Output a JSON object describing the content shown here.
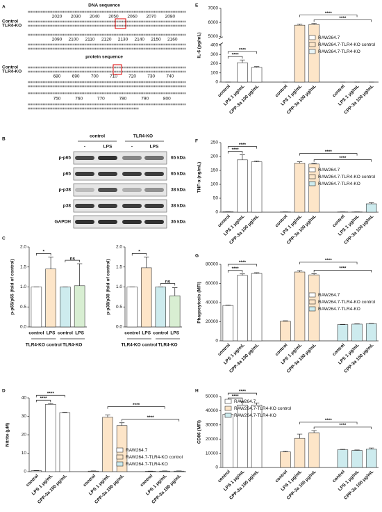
{
  "panel_a": {
    "label": "A",
    "dna_title": "DNA sequence",
    "protein_title": "protein sequence",
    "row_labels": [
      "Control",
      "TLR4-KO"
    ],
    "dna_positions": [
      [
        2020,
        2030,
        2040,
        2050,
        2060,
        2070,
        2080
      ],
      [
        2090,
        2100,
        2110,
        2120,
        2130,
        2140,
        2150,
        2160
      ]
    ],
    "protein_positions": [
      [
        680,
        690,
        700,
        710,
        720,
        730,
        740
      ],
      [
        750,
        760,
        770,
        780,
        790,
        800
      ]
    ]
  },
  "panel_b": {
    "label": "B",
    "groups": [
      "control",
      "TLR4-KO"
    ],
    "treatments": [
      "-",
      "LPS",
      "-",
      "LPS"
    ],
    "proteins": [
      "p-p65",
      "p65",
      "p-p38",
      "p38",
      "GAPDH"
    ],
    "sizes": [
      "65 kDa",
      "65 kDa",
      "38 kDa",
      "38 kDa",
      "36 kDa"
    ]
  },
  "chart_data": [
    {
      "type": "bar",
      "label": "C",
      "ylabel": "p-p65/p65 (fold of control)",
      "categories": [
        "control",
        "LPS",
        "control",
        "LPS"
      ],
      "group_labels": [
        "TLR4-KO control",
        "TLR4-KO"
      ],
      "values": [
        1,
        1.45,
        1,
        1.03
      ],
      "errors": [
        0,
        0.3,
        0,
        0.55
      ],
      "colors": [
        "#ffffff",
        "#fde5c8",
        "#cdebee",
        "#d8eed2"
      ],
      "ylim": [
        0,
        2
      ],
      "yticks": [
        {
          "value": 0,
          "label": "0.0"
        },
        {
          "value": 0.5,
          "label": "0.5"
        },
        {
          "value": 1,
          "label": "1.0"
        },
        {
          "value": 1.5,
          "label": "1.5"
        },
        {
          "value": 2,
          "label": "2.0"
        }
      ],
      "annotations": [
        "*",
        "ns"
      ]
    },
    {
      "type": "bar",
      "ylabel": "p-p38/p38 (fold of control)",
      "categories": [
        "control",
        "LPS",
        "control",
        "LPS"
      ],
      "group_labels": [
        "TLR4-KO control",
        "TLR4-KO"
      ],
      "values": [
        1,
        1.48,
        1,
        0.78
      ],
      "errors": [
        0,
        0.27,
        0,
        0.2
      ],
      "colors": [
        "#ffffff",
        "#fde5c8",
        "#cdebee",
        "#d8eed2"
      ],
      "ylim": [
        0,
        2
      ],
      "yticks": [
        {
          "value": 0,
          "label": "0.0"
        },
        {
          "value": 0.5,
          "label": "0.5"
        },
        {
          "value": 1,
          "label": "1.0"
        },
        {
          "value": 1.5,
          "label": "1.5"
        },
        {
          "value": 2,
          "label": "2.0"
        }
      ],
      "annotations": [
        "*",
        "ns"
      ]
    },
    {
      "type": "bar",
      "label": "D",
      "ylabel": "Nitrite (μM)",
      "categories": [
        "control",
        "LPS 1 μg/mL",
        "CPP-3a 100 μg/mL"
      ],
      "series": [
        {
          "name": "RAW264.7",
          "color": "#ffffff",
          "values": [
            0.5,
            36.5,
            32
          ],
          "errors": [
            0.1,
            0.4,
            0.3
          ]
        },
        {
          "name": "RAW264.7-TLR4-KO control",
          "color": "#fde5c8",
          "values": [
            0.3,
            29.5,
            25
          ],
          "errors": [
            0.1,
            1.2,
            1.5
          ]
        },
        {
          "name": "RAW264.7-TLR4-KO",
          "color": "#cdebee",
          "values": [
            0.2,
            0.3,
            0.3
          ],
          "errors": [
            0.1,
            0.1,
            0.1
          ]
        }
      ],
      "ylim": [
        0,
        40
      ],
      "yticks": [
        0,
        10,
        20,
        30,
        40
      ],
      "legend": "lower right",
      "annotations": [
        "****",
        "****",
        "****",
        "****"
      ]
    },
    {
      "type": "bar",
      "label": "E",
      "ylabel": "IL-6 (pg/mL)",
      "categories": [
        "control",
        "LPS 1 μg/mL",
        "CPP-3a 100 μg/mL"
      ],
      "series": [
        {
          "name": "RAW264.7",
          "color": "#ffffff",
          "values": [
            0,
            210,
            160
          ],
          "errors": [
            0,
            30,
            8
          ]
        },
        {
          "name": "RAW264.7-TLR4-KO control",
          "color": "#fde5c8",
          "values": [
            0,
            5800,
            5850
          ],
          "errors": [
            0,
            60,
            80
          ]
        },
        {
          "name": "RAW264.7-TLR4-KO",
          "color": "#e8f4f6",
          "values": [
            0,
            0,
            0
          ],
          "errors": [
            0,
            0,
            0
          ]
        }
      ],
      "ylim": [
        0,
        7000
      ],
      "ybreak": [
        400,
        5000
      ],
      "yticks": [
        0,
        100,
        200,
        300,
        400,
        5000,
        6000,
        7000
      ],
      "legend": "center right",
      "annotations": [
        "****",
        "****",
        "****",
        "****"
      ]
    },
    {
      "type": "bar",
      "label": "F",
      "ylabel": "TNF-α (ng/mL)",
      "categories": [
        "control",
        "LPS 1 μg/mL",
        "CPP-3a 100 μg/mL"
      ],
      "series": [
        {
          "name": "RAW264.7",
          "color": "#ffffff",
          "values": [
            2,
            188,
            181
          ],
          "errors": [
            0,
            18,
            3
          ]
        },
        {
          "name": "RAW264.7-TLR4-KO control",
          "color": "#fde5c8",
          "values": [
            1,
            176,
            173
          ],
          "errors": [
            0,
            5,
            3
          ]
        },
        {
          "name": "RAW264.7-TLR4-KO",
          "color": "#cdebee",
          "values": [
            1,
            1,
            30
          ],
          "errors": [
            0,
            0,
            4
          ]
        }
      ],
      "ylim": [
        0,
        250
      ],
      "yticks": [
        0,
        50,
        100,
        150,
        200,
        250
      ],
      "legend": "center right",
      "annotations": [
        "****",
        "****",
        "****",
        "****"
      ]
    },
    {
      "type": "bar",
      "label": "G",
      "ylabel": "Phagocytosis (MFI)",
      "categories": [
        "control",
        "LPS 1 μg/mL",
        "CPP-3a 100 μg/mL"
      ],
      "series": [
        {
          "name": "RAW264.7",
          "color": "#ffffff",
          "values": [
            37000,
            68500,
            70500
          ],
          "errors": [
            500,
            1500,
            800
          ]
        },
        {
          "name": "RAW264.7-TLR4-KO control",
          "color": "#fde5c8",
          "values": [
            20500,
            72000,
            69000
          ],
          "errors": [
            500,
            1500,
            1200
          ]
        },
        {
          "name": "RAW264.7-TLR4-KO",
          "color": "#cdebee",
          "values": [
            17000,
            17500,
            18000
          ],
          "errors": [
            300,
            300,
            300
          ]
        }
      ],
      "ylim": [
        0,
        80000
      ],
      "yticks": [
        0,
        20000,
        40000,
        60000,
        80000
      ],
      "legend": "center right",
      "annotations": [
        "****",
        "****",
        "****",
        "****"
      ]
    },
    {
      "type": "bar",
      "label": "H",
      "ylabel": "CD86 (MFI)",
      "categories": [
        "control",
        "LPS 1 μg/mL",
        "CPP-3a 100 μg/mL"
      ],
      "series": [
        {
          "name": "RAW264.7",
          "color": "#ffffff",
          "values": [
            37500,
            44000,
            44000
          ],
          "errors": [
            500,
            2500,
            1500
          ]
        },
        {
          "name": "RAW264.7-TLR4-KO control",
          "color": "#fde5c8",
          "values": [
            11000,
            20500,
            24500
          ],
          "errors": [
            600,
            3000,
            1500
          ]
        },
        {
          "name": "RAW264.7-TLR4-KO",
          "color": "#cdebee",
          "values": [
            12500,
            12000,
            13000
          ],
          "errors": [
            300,
            300,
            700
          ]
        }
      ],
      "ylim": [
        0,
        50000
      ],
      "yticks": [
        0,
        10000,
        20000,
        30000,
        40000,
        50000
      ],
      "legend": "upper left",
      "annotations": [
        "****",
        "****",
        "****",
        "****"
      ]
    }
  ]
}
